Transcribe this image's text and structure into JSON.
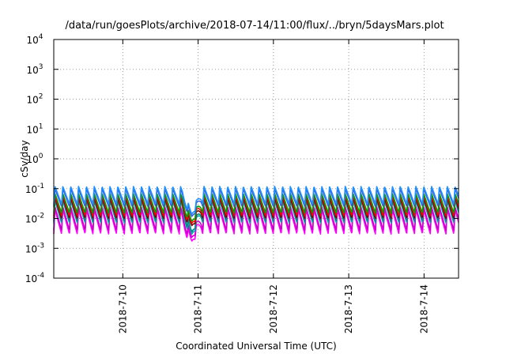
{
  "chart_data": {
    "type": "line",
    "title": "/data/run/goesPlots/archive/2018-07-14/11:00/flux/../bryn/5daysMars.plot",
    "xlabel": "Coordinated Universal Time (UTC)",
    "ylabel": "cSv/day",
    "yscale": "log",
    "ylim": [
      0.0001,
      10000
    ],
    "y_ticks": [
      {
        "base": "10",
        "exp": "-4"
      },
      {
        "base": "10",
        "exp": "-3"
      },
      {
        "base": "10",
        "exp": "-2"
      },
      {
        "base": "10",
        "exp": "-1"
      },
      {
        "base": "10",
        "exp": "0"
      },
      {
        "base": "10",
        "exp": "1"
      },
      {
        "base": "10",
        "exp": "2"
      },
      {
        "base": "10",
        "exp": "3"
      },
      {
        "base": "10",
        "exp": "4"
      }
    ],
    "x_range": [
      "2018-07-09 02:00",
      "2018-07-14 11:00"
    ],
    "x_ticks": [
      "2018-7-10",
      "2018-7-11",
      "2018-7-12",
      "2018-7-13",
      "2018-7-14"
    ],
    "grid": true,
    "sawtooth_period_hours": 2.5,
    "dip": {
      "center": "2018-07-10 22:00",
      "width_hours": 6
    },
    "series": [
      {
        "color": "#ff00ff",
        "peak": 0.02,
        "min": 0.003,
        "dip_min": 0.0015
      },
      {
        "color": "#cc00cc",
        "peak": 0.025,
        "min": 0.004,
        "dip_min": 0.002
      },
      {
        "color": "#00b0b0",
        "peak": 0.04,
        "min": 0.007,
        "dip_min": 0.0025
      },
      {
        "color": "#008a8a",
        "peak": 0.045,
        "min": 0.008,
        "dip_min": 0.003
      },
      {
        "color": "#800000",
        "peak": 0.05,
        "min": 0.01,
        "dip_min": 0.005
      },
      {
        "color": "#ff0000",
        "peak": 0.06,
        "min": 0.012,
        "dip_min": 0.006
      },
      {
        "color": "#00a000",
        "peak": 0.07,
        "min": 0.015,
        "dip_min": 0.007
      },
      {
        "color": "#3b5bdb",
        "peak": 0.1,
        "min": 0.025,
        "dip_min": 0.01
      },
      {
        "color": "#1e90ff",
        "peak": 0.12,
        "min": 0.03,
        "dip_min": 0.012
      }
    ]
  }
}
